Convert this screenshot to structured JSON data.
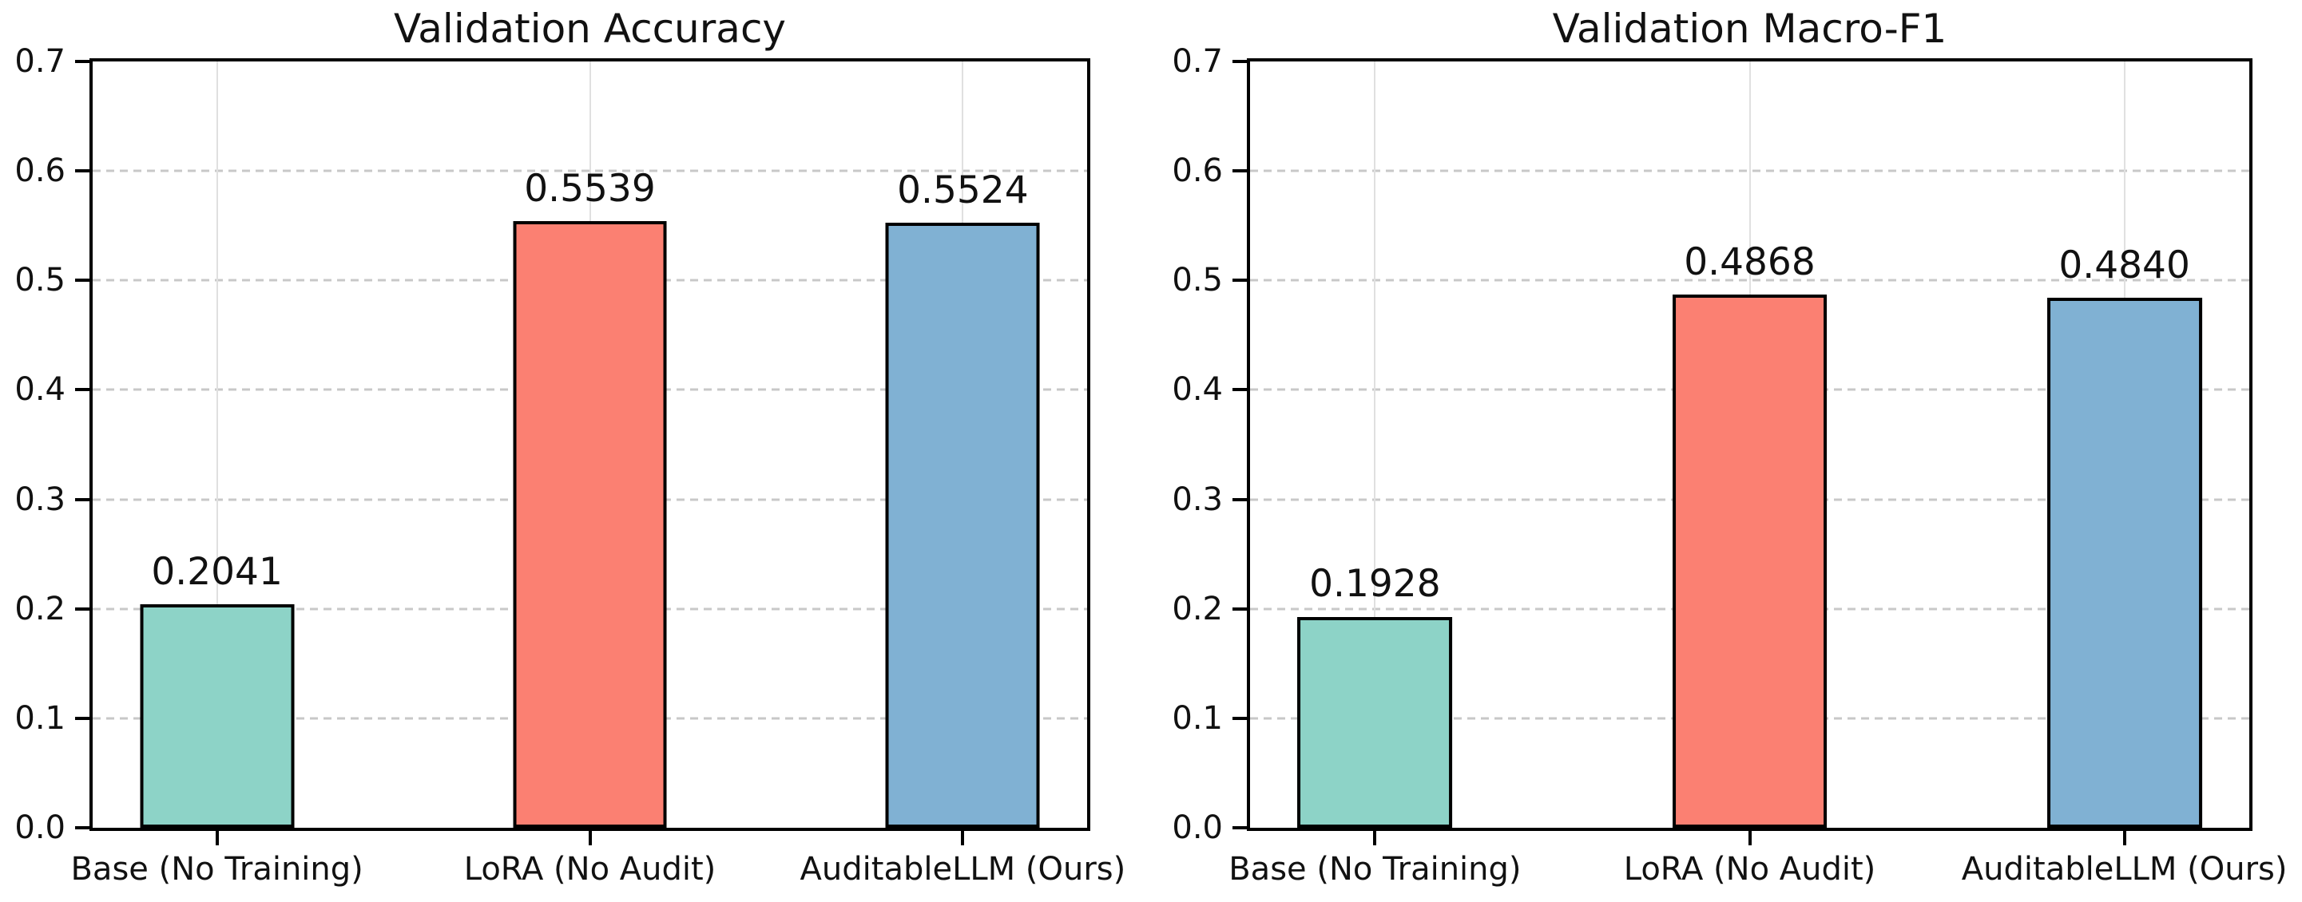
{
  "figure": {
    "background_color": "#ffffff",
    "text_color": "#111111"
  },
  "style": {
    "spine_color": "#000000",
    "bar_edge_color": "#000000",
    "grid_h_color": "#c8c8c8",
    "grid_v_color": "#e0e0e0",
    "tick_color": "#000000"
  },
  "chart_data": [
    {
      "type": "bar",
      "title": "Validation Accuracy",
      "categories": [
        "Base (No Training)",
        "LoRA (No Audit)",
        "AuditableLLM (Ours)"
      ],
      "values": [
        0.2041,
        0.5539,
        0.5524
      ],
      "value_labels": [
        "0.2041",
        "0.5539",
        "0.5524"
      ],
      "bar_colors": [
        "#8dd3c7",
        "#fb8072",
        "#80b1d3"
      ],
      "xlabel": "",
      "ylabel": "",
      "ylim": [
        0.0,
        0.7
      ],
      "yticks": [
        0.0,
        0.1,
        0.2,
        0.3,
        0.4,
        0.5,
        0.6,
        0.7
      ],
      "ytick_labels": [
        "0.0",
        "0.1",
        "0.2",
        "0.3",
        "0.4",
        "0.5",
        "0.6",
        "0.7"
      ],
      "grid": "horizontal dashed + vertical solid at bar centers",
      "legend_position": "none"
    },
    {
      "type": "bar",
      "title": "Validation Macro-F1",
      "categories": [
        "Base (No Training)",
        "LoRA (No Audit)",
        "AuditableLLM (Ours)"
      ],
      "values": [
        0.1928,
        0.4868,
        0.484
      ],
      "value_labels": [
        "0.1928",
        "0.4868",
        "0.4840"
      ],
      "bar_colors": [
        "#8dd3c7",
        "#fb8072",
        "#80b1d3"
      ],
      "xlabel": "",
      "ylabel": "",
      "ylim": [
        0.0,
        0.7
      ],
      "yticks": [
        0.0,
        0.1,
        0.2,
        0.3,
        0.4,
        0.5,
        0.6,
        0.7
      ],
      "ytick_labels": [
        "0.0",
        "0.1",
        "0.2",
        "0.3",
        "0.4",
        "0.5",
        "0.6",
        "0.7"
      ],
      "grid": "horizontal dashed + vertical solid at bar centers",
      "legend_position": "none"
    }
  ]
}
